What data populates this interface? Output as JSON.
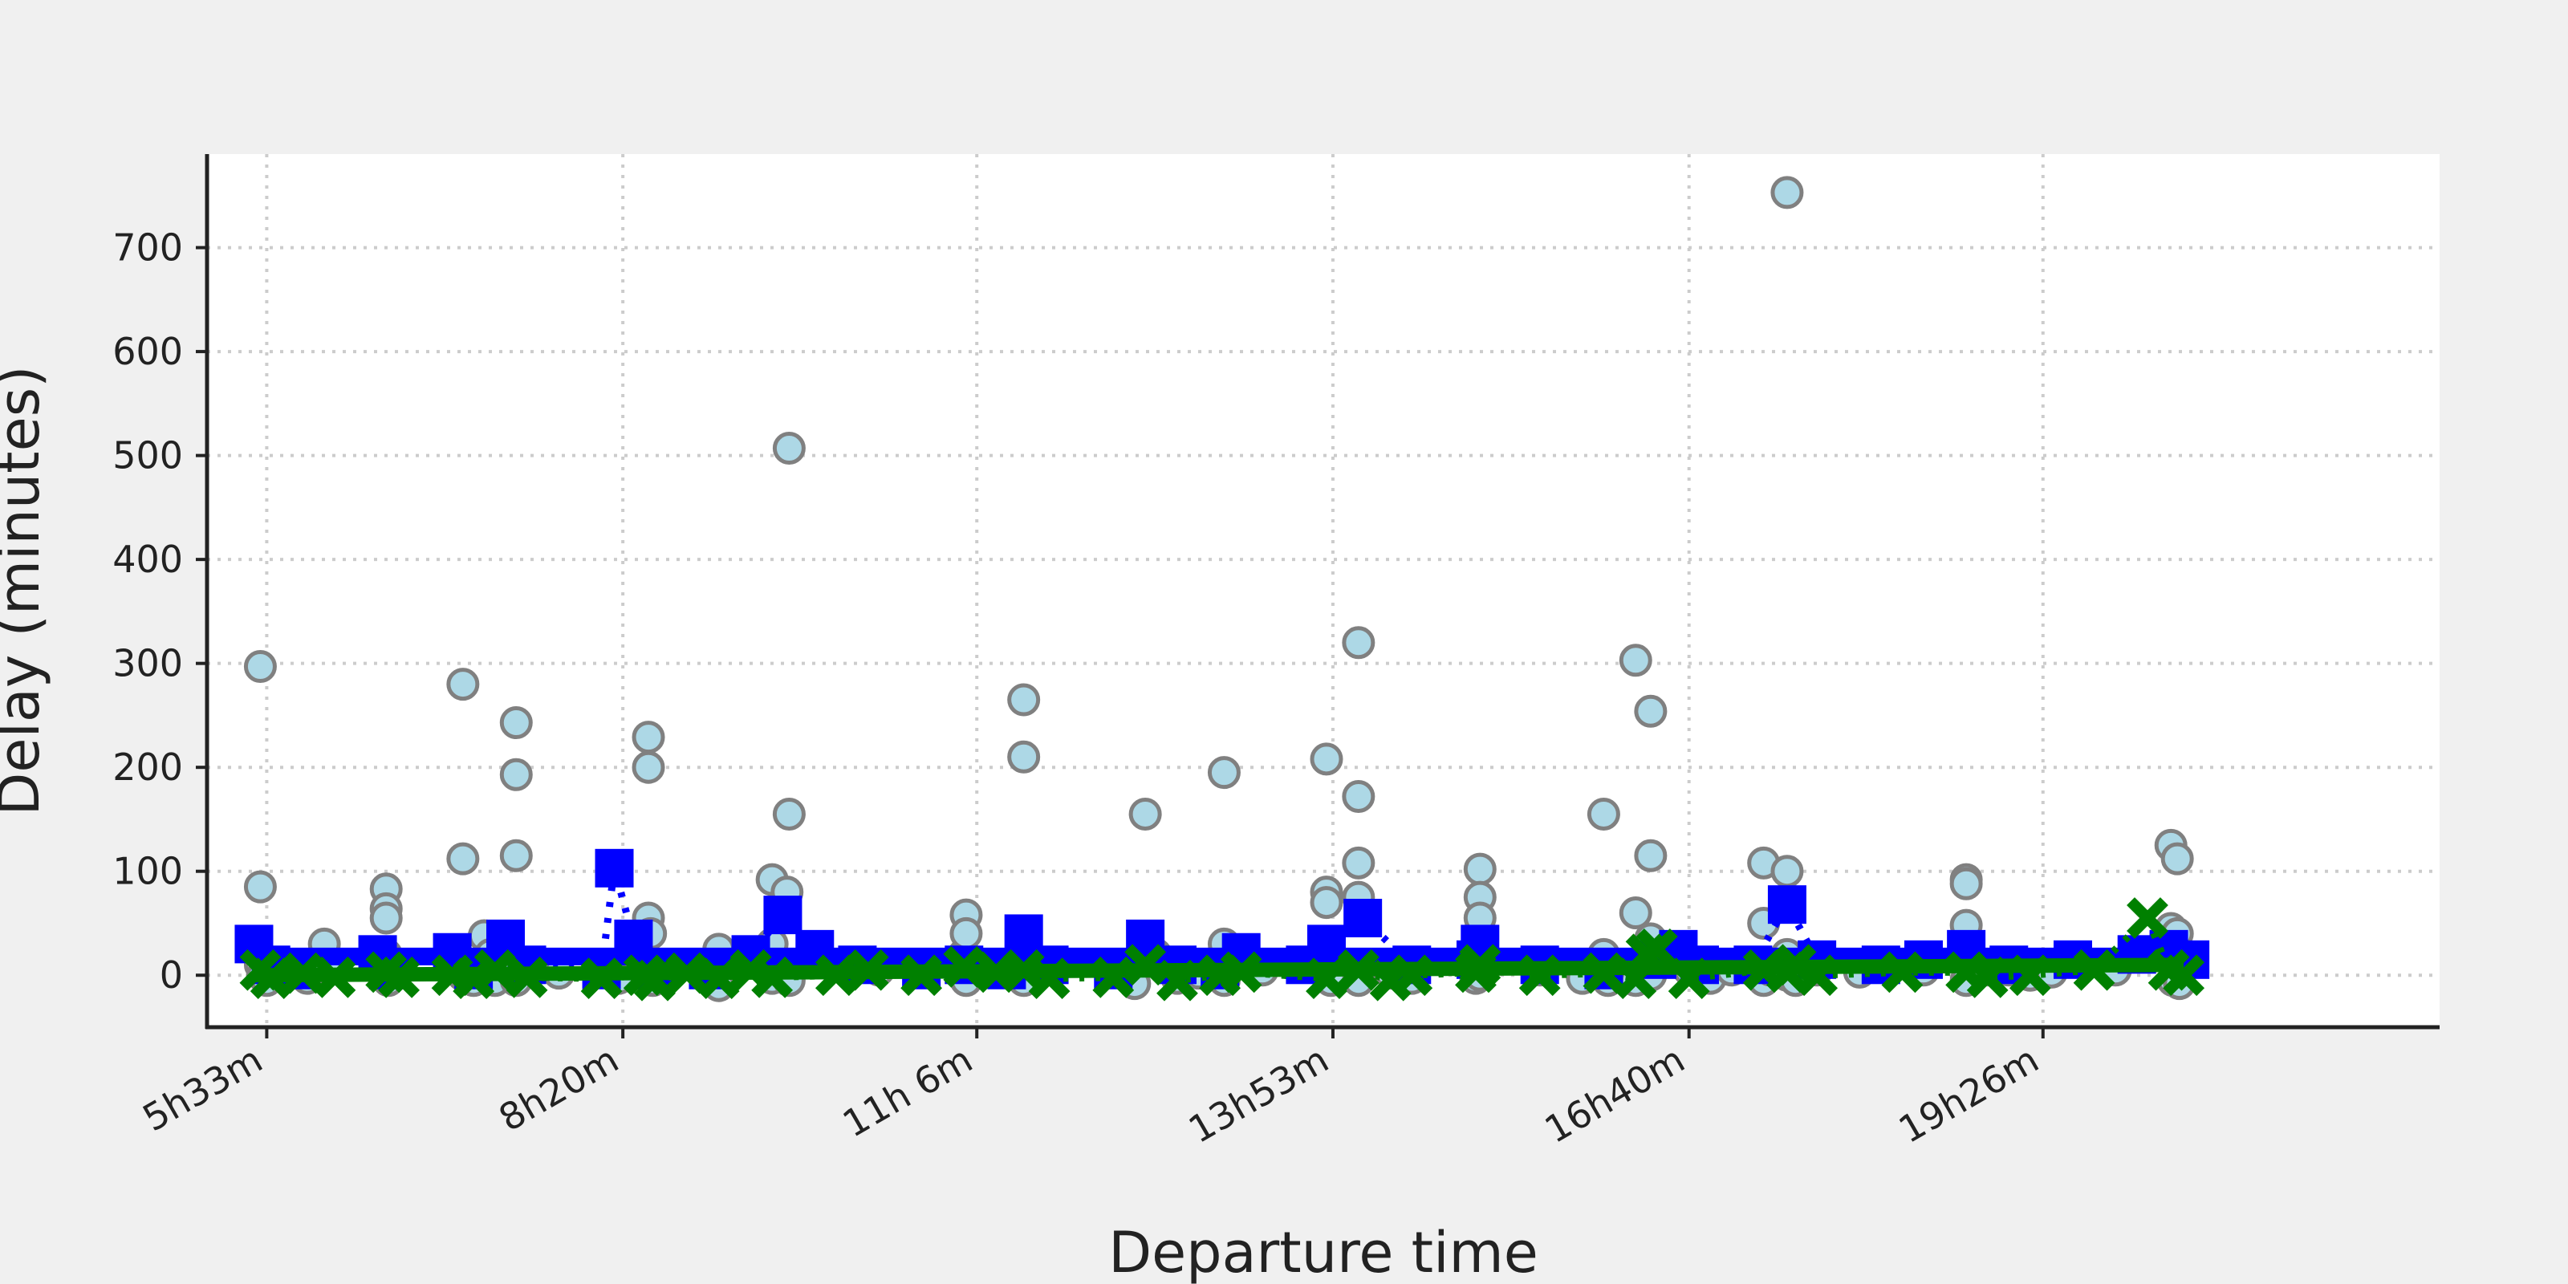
{
  "chart_data": {
    "type": "scatter",
    "title": "",
    "xlabel": "Departure time",
    "ylabel": "Delay (minutes)",
    "x_unit": "minutes since midnight",
    "xlim": [
      305,
      1352
    ],
    "ylim": [
      -50,
      790
    ],
    "x_ticks": [
      {
        "value": 333,
        "label": "5h33m"
      },
      {
        "value": 500,
        "label": "8h20m"
      },
      {
        "value": 666,
        "label": "11h 6m"
      },
      {
        "value": 833,
        "label": "13h53m"
      },
      {
        "value": 1000,
        "label": "16h40m"
      },
      {
        "value": 1166,
        "label": "19h26m"
      }
    ],
    "y_ticks": [
      0,
      100,
      200,
      300,
      400,
      500,
      600,
      700
    ],
    "grid": true,
    "legend": "none",
    "colors": {
      "scatter_fill": "#add8e6",
      "scatter_edge": "#808080",
      "blue_series": "#0000ff",
      "green_series": "#008000",
      "grid": "#cccccc",
      "plot_bg": "#ffffff",
      "figure_bg": "#f0f0f0"
    },
    "series": [
      {
        "kind": "scatter-circle",
        "points": [
          [
            330,
            297
          ],
          [
            330,
            85
          ],
          [
            330,
            10
          ],
          [
            331,
            0
          ],
          [
            333,
            -5
          ],
          [
            340,
            3
          ],
          [
            345,
            2
          ],
          [
            352,
            -3
          ],
          [
            360,
            30
          ],
          [
            362,
            5
          ],
          [
            389,
            83
          ],
          [
            389,
            64
          ],
          [
            389,
            55
          ],
          [
            389,
            20
          ],
          [
            390,
            5
          ],
          [
            390,
            -5
          ],
          [
            425,
            112
          ],
          [
            425,
            280
          ],
          [
            425,
            10
          ],
          [
            425,
            0
          ],
          [
            430,
            -5
          ],
          [
            435,
            38
          ],
          [
            438,
            20
          ],
          [
            440,
            5
          ],
          [
            440,
            -5
          ],
          [
            450,
            243
          ],
          [
            450,
            193
          ],
          [
            450,
            115
          ],
          [
            450,
            10
          ],
          [
            450,
            -5
          ],
          [
            470,
            2
          ],
          [
            492,
            5
          ],
          [
            495,
            2
          ],
          [
            498,
            -3
          ],
          [
            510,
            5
          ],
          [
            512,
            229
          ],
          [
            512,
            200
          ],
          [
            512,
            55
          ],
          [
            513,
            40
          ],
          [
            514,
            -5
          ],
          [
            518,
            5
          ],
          [
            545,
            25
          ],
          [
            545,
            0
          ],
          [
            545,
            -10
          ],
          [
            570,
            92
          ],
          [
            570,
            30
          ],
          [
            570,
            -3
          ],
          [
            578,
            507
          ],
          [
            578,
            155
          ],
          [
            577,
            80
          ],
          [
            578,
            5
          ],
          [
            578,
            -5
          ],
          [
            600,
            10
          ],
          [
            620,
            5
          ],
          [
            640,
            3
          ],
          [
            660,
            20
          ],
          [
            660,
            5
          ],
          [
            661,
            58
          ],
          [
            661,
            40
          ],
          [
            661,
            -5
          ],
          [
            688,
            265
          ],
          [
            688,
            210
          ],
          [
            688,
            30
          ],
          [
            688,
            0
          ],
          [
            688,
            -5
          ],
          [
            730,
            5
          ],
          [
            740,
            5
          ],
          [
            745,
            155
          ],
          [
            740,
            -8
          ],
          [
            750,
            20
          ],
          [
            760,
            -3
          ],
          [
            770,
            2
          ],
          [
            782,
            195
          ],
          [
            782,
            30
          ],
          [
            782,
            0
          ],
          [
            782,
            -5
          ],
          [
            800,
            5
          ],
          [
            830,
            208
          ],
          [
            830,
            80
          ],
          [
            830,
            70
          ],
          [
            830,
            5
          ],
          [
            832,
            -5
          ],
          [
            845,
            320
          ],
          [
            845,
            172
          ],
          [
            845,
            108
          ],
          [
            845,
            75
          ],
          [
            845,
            5
          ],
          [
            845,
            -5
          ],
          [
            860,
            2
          ],
          [
            870,
            -3
          ],
          [
            900,
            -3
          ],
          [
            902,
            102
          ],
          [
            902,
            75
          ],
          [
            902,
            55
          ],
          [
            902,
            10
          ],
          [
            902,
            0
          ],
          [
            930,
            5
          ],
          [
            950,
            -3
          ],
          [
            960,
            155
          ],
          [
            960,
            20
          ],
          [
            962,
            -5
          ],
          [
            975,
            303
          ],
          [
            975,
            60
          ],
          [
            975,
            5
          ],
          [
            975,
            -5
          ],
          [
            982,
            254
          ],
          [
            982,
            115
          ],
          [
            982,
            35
          ],
          [
            982,
            0
          ],
          [
            1000,
            5
          ],
          [
            1010,
            -3
          ],
          [
            1020,
            5
          ],
          [
            1035,
            108
          ],
          [
            1035,
            50
          ],
          [
            1035,
            10
          ],
          [
            1035,
            -5
          ],
          [
            1038,
            5
          ],
          [
            1046,
            753
          ],
          [
            1046,
            100
          ],
          [
            1046,
            20
          ],
          [
            1046,
            0
          ],
          [
            1050,
            -5
          ],
          [
            1060,
            5
          ],
          [
            1080,
            3
          ],
          [
            1110,
            5
          ],
          [
            1130,
            92
          ],
          [
            1130,
            88
          ],
          [
            1130,
            48
          ],
          [
            1130,
            10
          ],
          [
            1130,
            -5
          ],
          [
            1140,
            5
          ],
          [
            1150,
            5
          ],
          [
            1160,
            0
          ],
          [
            1170,
            3
          ],
          [
            1200,
            5
          ],
          [
            1226,
            125
          ],
          [
            1226,
            45
          ],
          [
            1227,
            20
          ],
          [
            1227,
            -5
          ],
          [
            1229,
            112
          ],
          [
            1229,
            40
          ],
          [
            1229,
            0
          ],
          [
            1230,
            -8
          ]
        ]
      },
      {
        "kind": "blue-square-dotted",
        "points": [
          [
            327,
            30
          ],
          [
            335,
            10
          ],
          [
            345,
            5
          ],
          [
            385,
            20
          ],
          [
            390,
            5
          ],
          [
            420,
            22
          ],
          [
            430,
            5
          ],
          [
            445,
            35
          ],
          [
            455,
            10
          ],
          [
            490,
            5
          ],
          [
            496,
            103
          ],
          [
            505,
            35
          ],
          [
            515,
            5
          ],
          [
            540,
            5
          ],
          [
            560,
            20
          ],
          [
            575,
            58
          ],
          [
            590,
            25
          ],
          [
            610,
            10
          ],
          [
            640,
            5
          ],
          [
            660,
            10
          ],
          [
            680,
            5
          ],
          [
            688,
            40
          ],
          [
            700,
            10
          ],
          [
            730,
            5
          ],
          [
            745,
            35
          ],
          [
            760,
            10
          ],
          [
            780,
            5
          ],
          [
            790,
            22
          ],
          [
            820,
            10
          ],
          [
            830,
            30
          ],
          [
            847,
            55
          ],
          [
            870,
            10
          ],
          [
            900,
            15
          ],
          [
            902,
            30
          ],
          [
            930,
            10
          ],
          [
            960,
            5
          ],
          [
            985,
            15
          ],
          [
            995,
            25
          ],
          [
            1005,
            10
          ],
          [
            1030,
            10
          ],
          [
            1046,
            68
          ],
          [
            1060,
            15
          ],
          [
            1090,
            10
          ],
          [
            1110,
            15
          ],
          [
            1130,
            25
          ],
          [
            1150,
            10
          ],
          [
            1180,
            15
          ],
          [
            1210,
            20
          ],
          [
            1225,
            25
          ],
          [
            1235,
            15
          ]
        ]
      },
      {
        "kind": "blue-line-solid",
        "points": [
          [
            327,
            18
          ],
          [
            1232,
            18
          ]
        ]
      },
      {
        "kind": "green-x-dotted",
        "points": [
          [
            330,
            5
          ],
          [
            335,
            -3
          ],
          [
            350,
            2
          ],
          [
            365,
            -2
          ],
          [
            389,
            3
          ],
          [
            395,
            -2
          ],
          [
            420,
            0
          ],
          [
            430,
            -3
          ],
          [
            440,
            5
          ],
          [
            455,
            -2
          ],
          [
            490,
            -3
          ],
          [
            510,
            0
          ],
          [
            515,
            -5
          ],
          [
            530,
            2
          ],
          [
            545,
            -3
          ],
          [
            560,
            5
          ],
          [
            570,
            -2
          ],
          [
            600,
            0
          ],
          [
            615,
            5
          ],
          [
            640,
            0
          ],
          [
            660,
            8
          ],
          [
            675,
            3
          ],
          [
            688,
            5
          ],
          [
            700,
            -3
          ],
          [
            730,
            -2
          ],
          [
            745,
            10
          ],
          [
            760,
            -5
          ],
          [
            780,
            0
          ],
          [
            790,
            3
          ],
          [
            830,
            -3
          ],
          [
            845,
            5
          ],
          [
            860,
            -5
          ],
          [
            870,
            0
          ],
          [
            900,
            3
          ],
          [
            902,
            10
          ],
          [
            930,
            0
          ],
          [
            960,
            2
          ],
          [
            975,
            -3
          ],
          [
            980,
            20
          ],
          [
            985,
            25
          ],
          [
            1000,
            -3
          ],
          [
            1035,
            5
          ],
          [
            1046,
            3
          ],
          [
            1050,
            10
          ],
          [
            1060,
            0
          ],
          [
            1100,
            3
          ],
          [
            1130,
            3
          ],
          [
            1140,
            -2
          ],
          [
            1160,
            0
          ],
          [
            1190,
            5
          ],
          [
            1215,
            55
          ],
          [
            1225,
            5
          ],
          [
            1232,
            0
          ]
        ]
      },
      {
        "kind": "green-line-solid",
        "points": [
          [
            327,
            0
          ],
          [
            1232,
            10
          ]
        ]
      }
    ]
  }
}
